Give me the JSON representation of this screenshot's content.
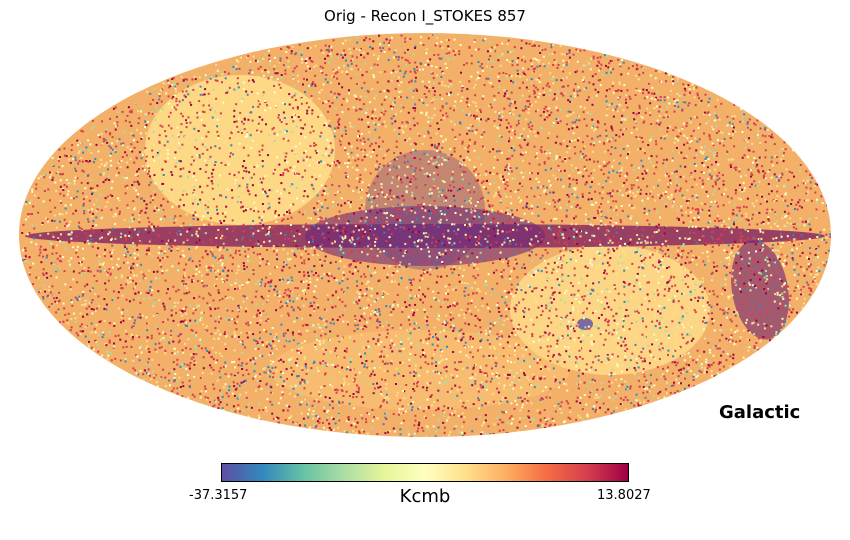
{
  "chart_data": {
    "type": "heatmap",
    "projection": "Mollweide",
    "title": "Orig - Recon I_STOKES 857",
    "coordinate_system": "Galactic",
    "colorbar": {
      "min_label": "-37.3157",
      "max_label": "13.8027",
      "min": -37.3157,
      "max": 13.8027,
      "unit": "Kcmb",
      "colormap": "Spectral_r",
      "stops": [
        "#5e4fa2",
        "#3288bd",
        "#66c2a5",
        "#abdda4",
        "#e6f598",
        "#ffffbf",
        "#fee08b",
        "#fdae61",
        "#f46d43",
        "#d53e4f",
        "#9e0142"
      ]
    },
    "grid": false
  }
}
